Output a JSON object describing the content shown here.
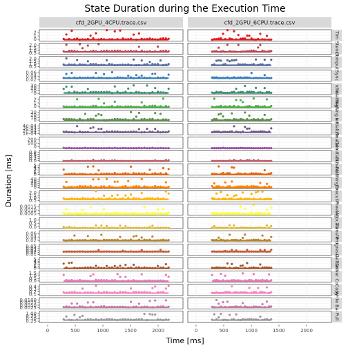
{
  "chart_data": {
    "type": "scatter",
    "title": "State Duration during the Execution Time",
    "xlabel": "Time [ms]",
    "ylabel": "Duration [ms]",
    "xlim": [
      -150,
      2450
    ],
    "x_ticks": [
      "0",
      "500",
      "1000",
      "1500",
      "2000"
    ],
    "x_tick_values": [
      0,
      500,
      1000,
      1500,
      2000
    ],
    "columns": [
      {
        "name": "cfd_2GPU_4CPU.trace.csv",
        "x_start": 290,
        "x_end": 2190
      },
      {
        "name": "cfd_2GPU_6CPU.trace.csv",
        "x_start": 290,
        "x_end": 1360
      }
    ],
    "grid": true,
    "legend": "none",
    "rows": [
      {
        "label": "Tim",
        "color": "#e41a1c",
        "ylim": [
          0,
          2.6
        ],
        "ticks": [
          "0",
          "1",
          "2"
        ],
        "base": 0.3,
        "spread": 2.2
      },
      {
        "label": "Stencil",
        "color": "#b84a5a",
        "ylim": [
          0,
          2.2
        ],
        "ticks": [
          "0.5",
          "1.0",
          "1.5",
          "2.0"
        ],
        "base": 0.5,
        "spread": 1.6
      },
      {
        "label": "Compute",
        "color": "#55679a",
        "ylim": [
          0,
          2.2
        ],
        "ticks": [
          "0.5",
          "1.0",
          "1.5",
          "2.0"
        ],
        "base": 0.5,
        "spread": 1.6
      },
      {
        "label": "Sync",
        "color": "#377eb8",
        "ylim": [
          0,
          0.075
        ],
        "ticks": [
          "0.02",
          "0.04",
          "0.06"
        ],
        "base": 0.02,
        "spread": 0.04
      },
      {
        "label": "Idle",
        "color": "#3d8f6e",
        "ylim": [
          0,
          34
        ],
        "ticks": [
          "0",
          "10",
          "20",
          "30"
        ],
        "base": 5,
        "spread": 25
      },
      {
        "label": "Waiting all",
        "color": "#4daf4a",
        "ylim": [
          0,
          2.6
        ],
        "ticks": [
          "0",
          "1",
          "2"
        ],
        "base": 0.2,
        "spread": 2.1
      },
      {
        "label": "Waiting a task",
        "color": "#5c8f4a",
        "ylim": [
          0,
          34
        ],
        "ticks": [
          "0",
          "10",
          "20",
          "30"
        ],
        "base": 4,
        "spread": 25
      },
      {
        "label": "Initializing",
        "color": "#6d5a8a",
        "ylim": [
          0,
          0.00046
        ],
        "ticks": [
          "1e-04",
          "2e-04",
          "3e-04",
          "4e-04"
        ],
        "base": 0.0001,
        "spread": 0.00028
      },
      {
        "label": "Finalizing",
        "color": "#984ea3",
        "ylim": [
          0,
          240
        ],
        "ticks": [
          "0",
          "100",
          "200"
        ],
        "base": 0,
        "spread": 10
      },
      {
        "label": "Deinitializing",
        "color": "#c05a6a",
        "ylim": [
          0,
          1.0
        ],
        "ticks": [
          "0.0",
          "0.2",
          "0.4",
          "0.6",
          "0.8"
        ],
        "base": 0.05,
        "spread": 0.1
      },
      {
        "label": "Scheduling",
        "color": "#e6650c",
        "ylim": [
          0,
          5.5
        ],
        "ticks": [
          "0",
          "1",
          "2",
          "3",
          "4",
          "5"
        ],
        "base": 0.3,
        "spread": 4.5
      },
      {
        "label": "Fetching input",
        "color": "#ff7f00",
        "ylim": [
          0,
          44
        ],
        "ticks": [
          "0",
          "10",
          "20",
          "30",
          "40"
        ],
        "base": 4,
        "spread": 34
      },
      {
        "label": "Executing",
        "color": "#ffb000",
        "ylim": [
          0,
          2.2
        ],
        "ticks": [
          "0.5",
          "1.0",
          "1.5",
          "2.0"
        ],
        "base": 0.5,
        "spread": 1.6
      },
      {
        "label": "Freeing",
        "color": "#ffff33",
        "ylim": [
          0,
          0.0018
        ],
        "ticks": [
          "0.0005",
          "0.0010",
          "0.0015"
        ],
        "base": 0.0002,
        "spread": 0.0014
      },
      {
        "label": "Allocating",
        "color": "#d9b63a",
        "ylim": [
          0,
          1.2
        ],
        "ticks": [
          "0.0",
          "0.5",
          "1.0"
        ],
        "base": 0.05,
        "spread": 0.3
      },
      {
        "label": "Transferring",
        "color": "#b8862b",
        "ylim": [
          0,
          0.075
        ],
        "ticks": [
          "0.02",
          "0.04",
          "0.06"
        ],
        "base": 0.01,
        "spread": 0.04
      },
      {
        "label": "Progressing",
        "color": "#c05d3a",
        "ylim": [
          0,
          0.06
        ],
        "ticks": [
          "0.01",
          "0.02",
          "0.03",
          "0.04",
          "0.05"
        ],
        "base": 0.02,
        "spread": 0.01
      },
      {
        "label": "Callback",
        "color": "#a65628",
        "ylim": [
          0,
          6
        ],
        "ticks": [
          "0",
          "1",
          "2",
          "3",
          "4",
          "5"
        ],
        "base": 0.3,
        "spread": 3
      },
      {
        "label": "Driver Copy",
        "color": "#e57ab8",
        "ylim": [
          0,
          1.9
        ],
        "ticks": [
          "0.0",
          "0.5",
          "1.0",
          "1.5"
        ],
        "base": 0.2,
        "spread": 1.4
      },
      {
        "label": "Copy",
        "color": "#f781bf",
        "ylim": [
          0,
          0.44
        ],
        "ticks": [
          "0.1",
          "0.2",
          "0.3",
          "0.4"
        ],
        "base": 0.1,
        "spread": 0.3
      },
      {
        "label": "Write Back",
        "color": "#c27fa8",
        "ylim": [
          0,
          0.0125
        ],
        "ticks": [
          "0.0025",
          "0.0050",
          "0.0075",
          "0.0100"
        ],
        "base": 0.002,
        "spread": 0.008
      },
      {
        "label": "Pull",
        "color": "#999999",
        "ylim": [
          0,
          1.2
        ],
        "ticks": [
          "0.25",
          "0.50",
          "0.75",
          "1.00"
        ],
        "base": 0.25,
        "spread": 0.7
      }
    ]
  }
}
